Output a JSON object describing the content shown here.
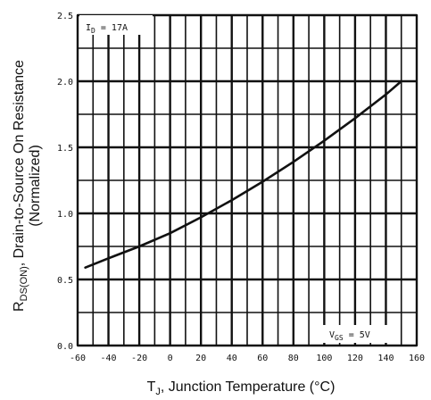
{
  "chart_data": {
    "type": "line",
    "xlabel": "T",
    "xlabel_sub": "J",
    "xlabel_rest": ", Junction Temperature (°C)",
    "ylabel_line1_pre": "R",
    "ylabel_line1_sub": "DS(ON)",
    "ylabel_line1_post": ", Drain-to-Source On Resistance",
    "ylabel_line2": "(Normalized)",
    "xlim": [
      -60,
      160
    ],
    "ylim": [
      0,
      2.5
    ],
    "x_ticks": [
      "-60",
      "-40",
      "-20",
      "0",
      "20",
      "40",
      "60",
      "80",
      "100",
      "120",
      "140",
      "160"
    ],
    "y_ticks": [
      "0.0",
      "0.5",
      "1.0",
      "1.5",
      "2.0",
      "2.5"
    ],
    "grid": true,
    "annotations": {
      "id_pre": "I",
      "id_sub": "D",
      "id_post": " = 17A",
      "vgs_pre": "V",
      "vgs_sub": "GS",
      "vgs_post": " = 5V"
    },
    "series": [
      {
        "x": [
          -55,
          -40,
          -20,
          0,
          20,
          40,
          60,
          80,
          100,
          120,
          140,
          150
        ],
        "y": [
          0.59,
          0.66,
          0.75,
          0.85,
          0.97,
          1.1,
          1.24,
          1.39,
          1.55,
          1.72,
          1.9,
          2.0
        ]
      }
    ]
  }
}
